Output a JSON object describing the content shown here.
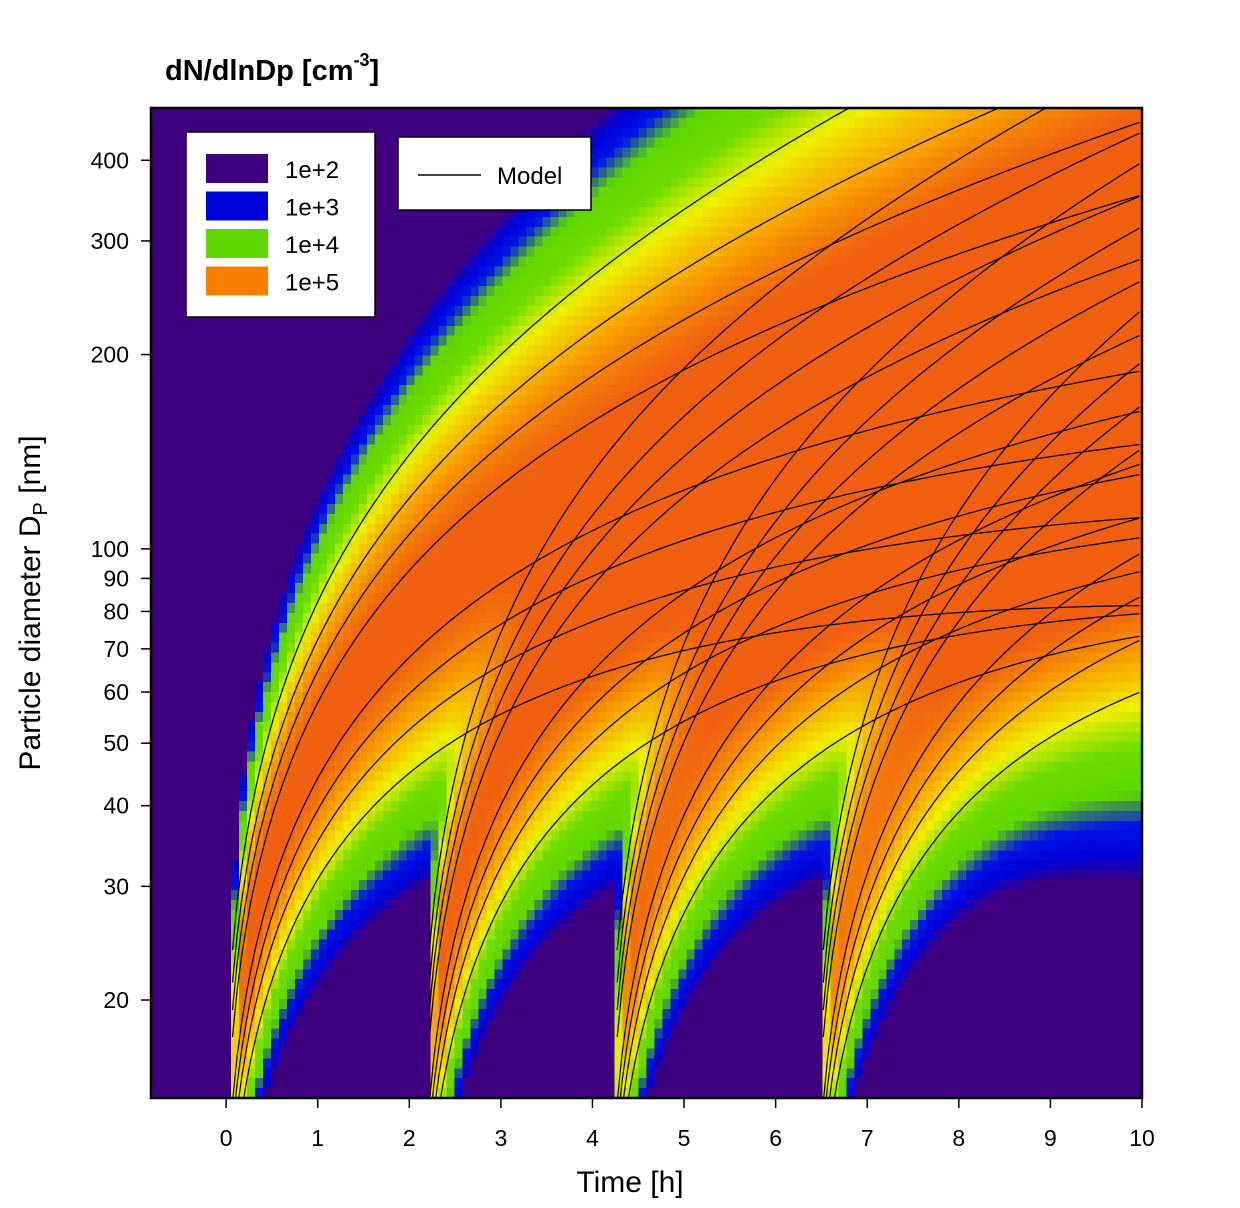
{
  "chart_data": {
    "type": "heatmap",
    "title": "dN/dlnDp [cm",
    "title_superscript": "-3",
    "title_suffix": "]",
    "xlabel": "Time [h]",
    "ylabel": "Particle diameter D",
    "ylabel_subscript": "P",
    "ylabel_suffix": " [nm]",
    "xlim": [
      -0.82,
      10
    ],
    "ylim": [
      14.1,
      482
    ],
    "y_scale": "log",
    "x_ticks": [
      "0",
      "1",
      "2",
      "3",
      "4",
      "5",
      "6",
      "7",
      "8",
      "9",
      "10"
    ],
    "y_ticks": [
      "20",
      "30",
      "40",
      "50",
      "60",
      "70",
      "80",
      "90",
      "100",
      "200",
      "300",
      "400"
    ],
    "color_legend": {
      "placement": "top-left",
      "items": [
        {
          "label": "1e+2",
          "color": "#3f0080"
        },
        {
          "label": "1e+3",
          "color": "#0000d8"
        },
        {
          "label": "1e+4",
          "color": "#60d800"
        },
        {
          "label": "1e+5",
          "color": "#f88000"
        }
      ]
    },
    "line_legend": {
      "label": "Model",
      "color": "#000000"
    },
    "nucleation_event_times_h": [
      0.05,
      2.2,
      4.25,
      6.5
    ],
    "grid": false
  }
}
